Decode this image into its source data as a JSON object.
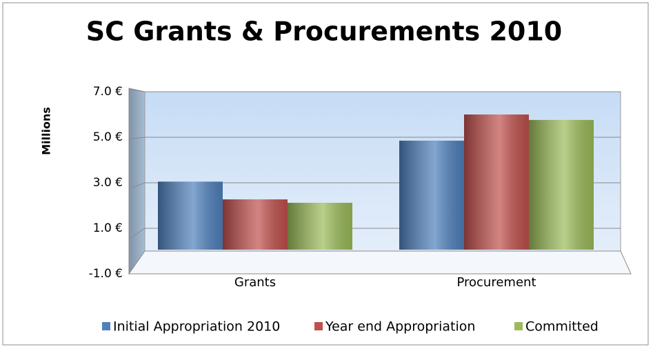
{
  "chart_data": {
    "type": "bar3d",
    "title": "SC Grants & Procurements 2010",
    "y_label": "Millions",
    "categories": [
      "Grants",
      "Procurement"
    ],
    "series": [
      {
        "name": "Initial Appropriation 2010",
        "color": "#4f81bd",
        "values": [
          3.05,
          4.85
        ]
      },
      {
        "name": "Year end Appropriation",
        "color": "#c0504d",
        "values": [
          2.27,
          6.0
        ]
      },
      {
        "name": "Committed",
        "color": "#9bbb59",
        "values": [
          2.12,
          5.76
        ]
      }
    ],
    "ylim": [
      -1,
      7
    ],
    "yticks": [
      {
        "value": -1,
        "label": "-1.0 €"
      },
      {
        "value": 1,
        "label": "1.0 €"
      },
      {
        "value": 3,
        "label": "3.0 €"
      },
      {
        "value": 5,
        "label": "5.0 €"
      },
      {
        "value": 7,
        "label": "7.0 €"
      }
    ],
    "grid": true,
    "legend": "bottom"
  }
}
